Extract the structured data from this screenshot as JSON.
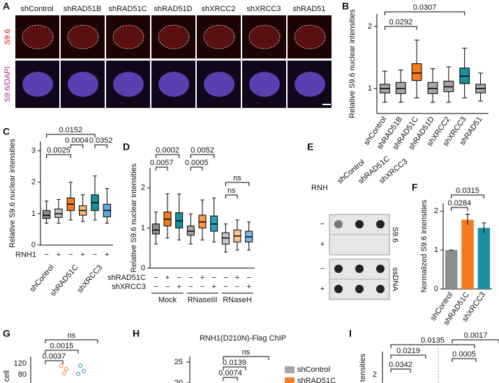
{
  "figure": {
    "A": {
      "label": "A",
      "columns": [
        "shControl",
        "shRAD51B",
        "shRAD51C",
        "shRAD51D",
        "shXRCC2",
        "shXRCC3",
        "shRAD51"
      ],
      "rows": [
        "S9.6",
        "S9.6/DAPI"
      ]
    },
    "E": {
      "label": "E",
      "rnh": "RNH",
      "columns": [
        "shControl",
        "shRAD51C",
        "shXRCC3"
      ],
      "blots": [
        {
          "label": "S9.6",
          "signs": [
            "−",
            "+"
          ]
        },
        {
          "label": "ssDNA",
          "signs": [
            "−",
            "+"
          ]
        }
      ]
    },
    "G": {
      "label": "G",
      "ylabel": "cell",
      "yticks": [
        120,
        80
      ],
      "pvalues": [
        "ns",
        "0.0015",
        "0.0037"
      ]
    },
    "H": {
      "label": "H",
      "title": "RNH1(D210N)-Flag ChIP",
      "yticks": [
        25,
        20
      ],
      "pvalues": [
        "ns",
        "0.0139",
        "0.0074"
      ],
      "legend": [
        {
          "name": "shControl",
          "color": "#a6a6a6"
        },
        {
          "name": "shRAD51C",
          "color": "#f47b20"
        }
      ]
    },
    "I": {
      "label": "I",
      "ylabel": "tensities",
      "yticks": [
        2
      ],
      "pvalues": [
        "0.0135",
        "0.0017",
        "0.0219",
        "0.0005",
        "0.0342"
      ]
    }
  },
  "chart_data": [
    {
      "type": "box",
      "panel": "B",
      "ylabel": "Relative S9.6 nuclear intensities",
      "ylim": [
        0.6,
        2.2
      ],
      "yticks": [
        1,
        2
      ],
      "categories": [
        "shControl",
        "shRAD51B",
        "shRAD51C",
        "shRAD51D",
        "shXRCC2",
        "shXRCC3",
        "shRAD51"
      ],
      "colors": [
        "#a6a6a6",
        "#a6a6a6",
        "#f47b20",
        "#a6a6a6",
        "#a6a6a6",
        "#1a8fa0",
        "#a6a6a6"
      ],
      "boxes": [
        {
          "low": 0.78,
          "q1": 0.93,
          "median": 1.0,
          "q3": 1.07,
          "high": 1.28
        },
        {
          "low": 0.78,
          "q1": 0.92,
          "median": 1.0,
          "q3": 1.1,
          "high": 1.3
        },
        {
          "low": 0.85,
          "q1": 1.13,
          "median": 1.25,
          "q3": 1.4,
          "high": 1.78
        },
        {
          "low": 0.78,
          "q1": 0.92,
          "median": 1.0,
          "q3": 1.1,
          "high": 1.32
        },
        {
          "low": 0.78,
          "q1": 0.95,
          "median": 1.03,
          "q3": 1.12,
          "high": 1.35
        },
        {
          "low": 0.85,
          "q1": 1.08,
          "median": 1.2,
          "q3": 1.33,
          "high": 1.65
        },
        {
          "low": 0.8,
          "q1": 0.93,
          "median": 1.0,
          "q3": 1.07,
          "high": 1.25
        }
      ],
      "brackets": [
        {
          "from": 0,
          "to": 2,
          "label": "0.0292"
        },
        {
          "from": 0,
          "to": 5,
          "label": "0.0307"
        }
      ]
    },
    {
      "type": "box",
      "panel": "C",
      "ylabel": "Relative S9.6 nuclear intensities",
      "ylim": [
        0,
        3.3
      ],
      "yticks": [
        0,
        1,
        2,
        3
      ],
      "colors": [
        "#8c8c8c",
        "#bfbfbf",
        "#f47b20",
        "#f9b77a",
        "#1a8fa0",
        "#5fa8e0"
      ],
      "boxes": [
        {
          "low": 0.7,
          "q1": 0.85,
          "median": 0.95,
          "q3": 1.1,
          "high": 1.4
        },
        {
          "low": 0.7,
          "q1": 0.88,
          "median": 1.0,
          "q3": 1.15,
          "high": 1.45
        },
        {
          "low": 0.8,
          "q1": 1.1,
          "median": 1.3,
          "q3": 1.5,
          "high": 2.0
        },
        {
          "low": 0.75,
          "q1": 0.95,
          "median": 1.1,
          "q3": 1.25,
          "high": 1.6
        },
        {
          "low": 0.8,
          "q1": 1.1,
          "median": 1.35,
          "q3": 1.6,
          "high": 2.2
        },
        {
          "low": 0.7,
          "q1": 0.9,
          "median": 1.1,
          "q3": 1.3,
          "high": 1.8
        }
      ],
      "rows": [
        {
          "label": "RNH1",
          "signs": [
            "−",
            "+",
            "−",
            "+",
            "−",
            "+"
          ]
        }
      ],
      "groups": [
        {
          "label": "shControl",
          "span": [
            0,
            1
          ]
        },
        {
          "label": "shRAD51C",
          "span": [
            2,
            3
          ]
        },
        {
          "label": "shXRCC3",
          "span": [
            4,
            5
          ]
        }
      ],
      "brackets": [
        {
          "from": 0,
          "to": 4,
          "label": "0.0152"
        },
        {
          "from": 0,
          "to": 2,
          "label": "0.0025"
        },
        {
          "from": 2,
          "to": 3,
          "label": "0.0004"
        },
        {
          "from": 4,
          "to": 5,
          "label": "0.0352"
        }
      ]
    },
    {
      "type": "box",
      "panel": "D",
      "ylabel": "Relative S9.6 nuclear intensities",
      "ylim": [
        0,
        2.5
      ],
      "yticks": [
        0,
        1,
        2
      ],
      "colors": [
        "#8c8c8c",
        "#f47b20",
        "#1a8fa0",
        "#a6a6a6",
        "#f79a4a",
        "#2aa0b5",
        "#c8c8c8",
        "#f9c88f",
        "#7fb5e0"
      ],
      "boxes": [
        {
          "low": 0.6,
          "q1": 0.85,
          "median": 0.95,
          "q3": 1.1,
          "high": 1.4
        },
        {
          "low": 0.75,
          "q1": 1.05,
          "median": 1.22,
          "q3": 1.4,
          "high": 1.85
        },
        {
          "low": 0.7,
          "q1": 1.0,
          "median": 1.18,
          "q3": 1.38,
          "high": 1.85
        },
        {
          "low": 0.6,
          "q1": 0.82,
          "median": 0.92,
          "q3": 1.05,
          "high": 1.35
        },
        {
          "low": 0.7,
          "q1": 1.0,
          "median": 1.15,
          "q3": 1.32,
          "high": 1.7
        },
        {
          "low": 0.65,
          "q1": 0.92,
          "median": 1.1,
          "q3": 1.3,
          "high": 1.75
        },
        {
          "low": 0.4,
          "q1": 0.6,
          "median": 0.75,
          "q3": 0.88,
          "high": 1.1
        },
        {
          "low": 0.45,
          "q1": 0.65,
          "median": 0.8,
          "q3": 0.95,
          "high": 1.2
        },
        {
          "low": 0.45,
          "q1": 0.65,
          "median": 0.78,
          "q3": 0.92,
          "high": 1.15
        }
      ],
      "rows": [
        {
          "label": "shRAD51C",
          "signs": [
            "−",
            "+",
            "−",
            "−",
            "+",
            "−",
            "−",
            "+",
            "−"
          ]
        },
        {
          "label": "shXRCC3",
          "signs": [
            "−",
            "−",
            "+",
            "−",
            "−",
            "+",
            "−",
            "−",
            "+"
          ]
        }
      ],
      "groups": [
        {
          "label": "Mock",
          "span": [
            0,
            2
          ]
        },
        {
          "label": "RNaseIII",
          "span": [
            3,
            5
          ]
        },
        {
          "label": "RNaseH",
          "span": [
            6,
            8
          ]
        }
      ],
      "brackets": [
        {
          "from": 0,
          "to": 2,
          "label": "0.0002"
        },
        {
          "from": 0,
          "to": 1,
          "label": "0.0057"
        },
        {
          "from": 3,
          "to": 5,
          "label": "0.0052"
        },
        {
          "from": 3,
          "to": 4,
          "label": "0.0005"
        },
        {
          "from": 6,
          "to": 8,
          "label": "ns"
        },
        {
          "from": 6,
          "to": 7,
          "label": "ns"
        }
      ]
    },
    {
      "type": "bar",
      "panel": "F",
      "ylabel": "Normalized S9.6 intensities",
      "ylim": [
        0,
        2.2
      ],
      "yticks": [
        0,
        1,
        2
      ],
      "categories": [
        "shControl",
        "shRAD51C",
        "shXRCC3"
      ],
      "values": [
        1,
        1.78,
        1.57
      ],
      "errors": [
        0,
        0.14,
        0.13
      ],
      "colors": [
        "#8c8c8c",
        "#f47b20",
        "#1a8fa0"
      ],
      "brackets": [
        {
          "from": 0,
          "to": 1,
          "label": "0.0284"
        },
        {
          "from": 0,
          "to": 2,
          "label": "0.0315"
        }
      ]
    }
  ]
}
